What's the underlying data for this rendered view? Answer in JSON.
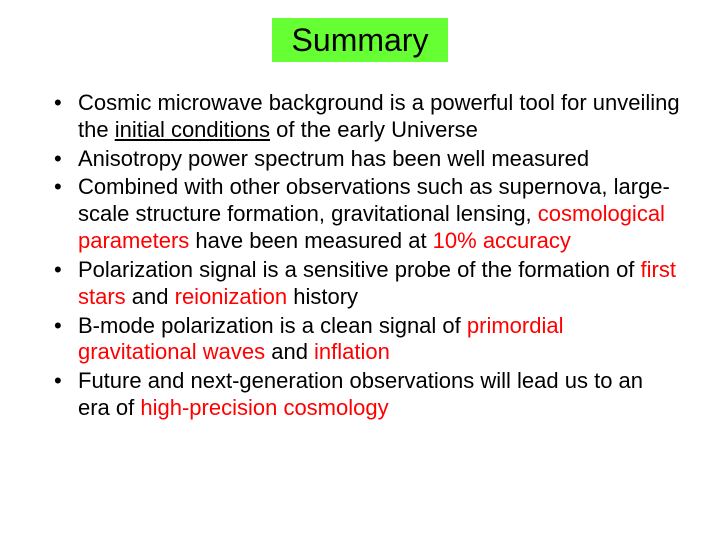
{
  "title": {
    "text": "Summary",
    "background_color": "#66ff33",
    "text_color": "#000000",
    "fontsize": 32
  },
  "highlight_color": "#ff0000",
  "body_text_color": "#000000",
  "body_fontsize": 22,
  "bullets": [
    {
      "segments": [
        {
          "text": "Cosmic microwave background is a powerful tool for unveiling the "
        },
        {
          "text": "initial conditions",
          "underline": true
        },
        {
          "text": " of the early Universe"
        }
      ]
    },
    {
      "segments": [
        {
          "text": "Anisotropy power spectrum has been well measured"
        }
      ]
    },
    {
      "segments": [
        {
          "text": "Combined with other observations such as supernova, large-scale structure formation, gravitational lensing, "
        },
        {
          "text": "cosmological parameters",
          "highlight": true
        },
        {
          "text": " have been measured at "
        },
        {
          "text": "10% accuracy",
          "highlight": true
        }
      ]
    },
    {
      "segments": [
        {
          "text": "Polarization signal is a sensitive probe of the formation of "
        },
        {
          "text": "first stars",
          "highlight": true
        },
        {
          "text": " and "
        },
        {
          "text": "reionization",
          "highlight": true
        },
        {
          "text": " history"
        }
      ]
    },
    {
      "segments": [
        {
          "text": "B-mode polarization is a clean signal of "
        },
        {
          "text": "primordial gravitational waves",
          "highlight": true
        },
        {
          "text": " and "
        },
        {
          "text": "inflation",
          "highlight": true
        }
      ]
    },
    {
      "segments": [
        {
          "text": "Future and next-generation observations will lead us to an era of "
        },
        {
          "text": "high-precision cosmology",
          "highlight": true
        }
      ]
    }
  ]
}
